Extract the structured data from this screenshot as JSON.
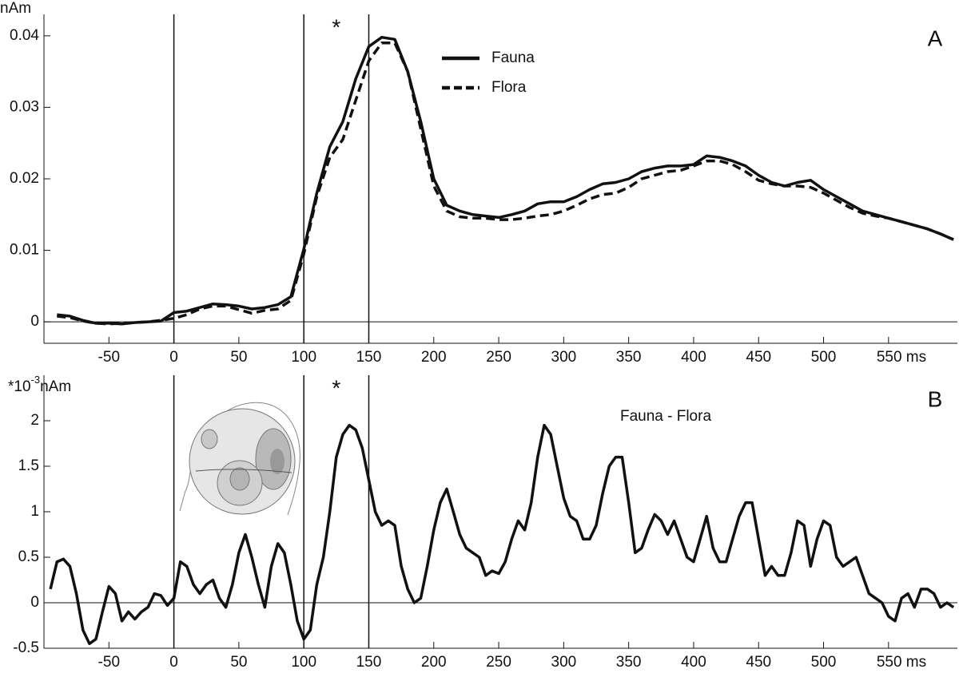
{
  "chart_data": [
    {
      "type": "line",
      "panel_label": "A",
      "ylabel": "nAm",
      "annotation": "*",
      "annotation_x": 125,
      "xlim": [
        -100,
        603
      ],
      "ylim": [
        -0.003,
        0.043
      ],
      "xticks": [
        -50,
        0,
        50,
        100,
        150,
        200,
        250,
        300,
        350,
        400,
        450,
        500,
        {
          "value": 550,
          "label": "550 ms"
        }
      ],
      "yticks": [
        0,
        0.01,
        0.02,
        0.03,
        0.04
      ],
      "vlines": [
        0,
        100,
        150
      ],
      "legend": "upper center",
      "x": [
        -90,
        -80,
        -70,
        -60,
        -50,
        -40,
        -30,
        -20,
        -10,
        0,
        10,
        20,
        30,
        40,
        50,
        60,
        70,
        80,
        90,
        100,
        110,
        120,
        130,
        140,
        150,
        160,
        170,
        180,
        190,
        200,
        210,
        220,
        230,
        240,
        250,
        260,
        270,
        280,
        290,
        300,
        310,
        320,
        330,
        340,
        350,
        360,
        370,
        380,
        390,
        400,
        410,
        420,
        430,
        440,
        450,
        460,
        470,
        480,
        490,
        500,
        510,
        520,
        530,
        540,
        550,
        560,
        570,
        580,
        590,
        600
      ],
      "series": [
        {
          "name": "Fauna",
          "color": "#111111",
          "dash": "solid",
          "values": [
            0.001,
            0.0008,
            0.0002,
            -0.0002,
            -0.0002,
            -0.0003,
            -0.0001,
            0,
            0.0001,
            0.0013,
            0.0015,
            0.002,
            0.0025,
            0.0024,
            0.0022,
            0.0018,
            0.002,
            0.0024,
            0.0035,
            0.0102,
            0.018,
            0.0245,
            0.028,
            0.034,
            0.0385,
            0.0398,
            0.0395,
            0.035,
            0.028,
            0.02,
            0.0163,
            0.0155,
            0.015,
            0.0148,
            0.0146,
            0.015,
            0.0155,
            0.0165,
            0.0168,
            0.0168,
            0.0175,
            0.0185,
            0.0193,
            0.0195,
            0.02,
            0.021,
            0.0215,
            0.0218,
            0.0218,
            0.022,
            0.0232,
            0.023,
            0.0225,
            0.0218,
            0.0205,
            0.0195,
            0.019,
            0.0195,
            0.0198,
            0.0185,
            0.0175,
            0.0165,
            0.0155,
            0.015,
            0.0145,
            0.014,
            0.0135,
            0.013,
            0.0123,
            0.0115
          ]
        },
        {
          "name": "Flora",
          "color": "#111111",
          "dash": "dashed",
          "values": [
            0.0008,
            0.0006,
            0.0001,
            -0.0002,
            -0.0003,
            -0.0002,
            -0.0001,
            0,
            0.0002,
            0.0005,
            0.001,
            0.0018,
            0.0022,
            0.0022,
            0.0017,
            0.0012,
            0.0016,
            0.0018,
            0.003,
            0.0095,
            0.0175,
            0.023,
            0.0255,
            0.031,
            0.0365,
            0.039,
            0.039,
            0.035,
            0.027,
            0.019,
            0.0155,
            0.0147,
            0.0145,
            0.0145,
            0.0143,
            0.0143,
            0.0145,
            0.0148,
            0.015,
            0.0155,
            0.0163,
            0.0172,
            0.0178,
            0.018,
            0.0188,
            0.02,
            0.0205,
            0.021,
            0.0212,
            0.0218,
            0.0225,
            0.0225,
            0.022,
            0.021,
            0.0198,
            0.0193,
            0.019,
            0.019,
            0.0188,
            0.018,
            0.017,
            0.016,
            0.0152,
            0.0148,
            0.0145,
            0.014,
            0.0135,
            0.013,
            0.0123,
            0.0115
          ]
        }
      ]
    },
    {
      "type": "line",
      "panel_label": "B",
      "ylabel_parts": [
        "*10",
        "-3",
        "nAm"
      ],
      "annotation": "*",
      "annotation_x": 125,
      "xlim": [
        -100,
        603
      ],
      "ylim": [
        -0.5,
        2.5
      ],
      "xticks": [
        -50,
        0,
        50,
        100,
        150,
        200,
        250,
        300,
        350,
        400,
        450,
        500,
        {
          "value": 550,
          "label": "550 ms"
        }
      ],
      "yticks": [
        -0.5,
        0,
        0.5,
        1,
        1.5,
        2
      ],
      "vlines": [
        0,
        100,
        150
      ],
      "x": [
        -95,
        -90,
        -85,
        -80,
        -75,
        -70,
        -65,
        -60,
        -55,
        -50,
        -45,
        -40,
        -35,
        -30,
        -25,
        -20,
        -15,
        -10,
        -5,
        0,
        5,
        10,
        15,
        20,
        25,
        30,
        35,
        40,
        45,
        50,
        55,
        60,
        65,
        70,
        75,
        80,
        85,
        90,
        95,
        100,
        105,
        110,
        115,
        120,
        125,
        130,
        135,
        140,
        145,
        150,
        155,
        160,
        165,
        170,
        175,
        180,
        185,
        190,
        195,
        200,
        205,
        210,
        215,
        220,
        225,
        230,
        235,
        240,
        245,
        250,
        255,
        260,
        265,
        270,
        275,
        280,
        285,
        290,
        295,
        300,
        305,
        310,
        315,
        320,
        325,
        330,
        335,
        340,
        345,
        350,
        355,
        360,
        365,
        370,
        375,
        380,
        385,
        390,
        395,
        400,
        405,
        410,
        415,
        420,
        425,
        430,
        435,
        440,
        445,
        450,
        455,
        460,
        465,
        470,
        475,
        480,
        485,
        490,
        495,
        500,
        505,
        510,
        515,
        520,
        525,
        530,
        535,
        540,
        545,
        550,
        555,
        560,
        565,
        570,
        575,
        580,
        585,
        590,
        595,
        600
      ],
      "series": [
        {
          "name": "Fauna - Flora",
          "color": "#111111",
          "dash": "solid",
          "values": [
            0.15,
            0.45,
            0.48,
            0.4,
            0.1,
            -0.3,
            -0.45,
            -0.4,
            -0.1,
            0.18,
            0.1,
            -0.2,
            -0.1,
            -0.18,
            -0.1,
            -0.05,
            0.1,
            0.08,
            -0.03,
            0.05,
            0.45,
            0.4,
            0.2,
            0.1,
            0.2,
            0.25,
            0.05,
            -0.05,
            0.2,
            0.55,
            0.75,
            0.5,
            0.2,
            -0.05,
            0.4,
            0.65,
            0.55,
            0.2,
            -0.2,
            -0.4,
            -0.3,
            0.2,
            0.5,
            1.0,
            1.6,
            1.85,
            1.95,
            1.9,
            1.7,
            1.35,
            1.0,
            0.85,
            0.9,
            0.85,
            0.4,
            0.15,
            0.0,
            0.05,
            0.4,
            0.8,
            1.1,
            1.25,
            1.0,
            0.75,
            0.6,
            0.55,
            0.5,
            0.3,
            0.35,
            0.32,
            0.45,
            0.7,
            0.9,
            0.8,
            1.1,
            1.6,
            1.95,
            1.85,
            1.5,
            1.15,
            0.95,
            0.9,
            0.7,
            0.7,
            0.85,
            1.2,
            1.5,
            1.6,
            1.6,
            1.1,
            0.55,
            0.6,
            0.8,
            0.97,
            0.9,
            0.75,
            0.9,
            0.7,
            0.5,
            0.45,
            0.7,
            0.95,
            0.6,
            0.45,
            0.45,
            0.7,
            0.95,
            1.1,
            1.1,
            0.7,
            0.3,
            0.4,
            0.3,
            0.3,
            0.55,
            0.9,
            0.85,
            0.4,
            0.7,
            0.9,
            0.85,
            0.5,
            0.4,
            0.45,
            0.5,
            0.3,
            0.1,
            0.05,
            0.0,
            -0.15,
            -0.2,
            0.05,
            0.1,
            -0.05,
            0.15,
            0.15,
            0.1,
            -0.05,
            0.0,
            -0.05
          ]
        }
      ]
    }
  ]
}
